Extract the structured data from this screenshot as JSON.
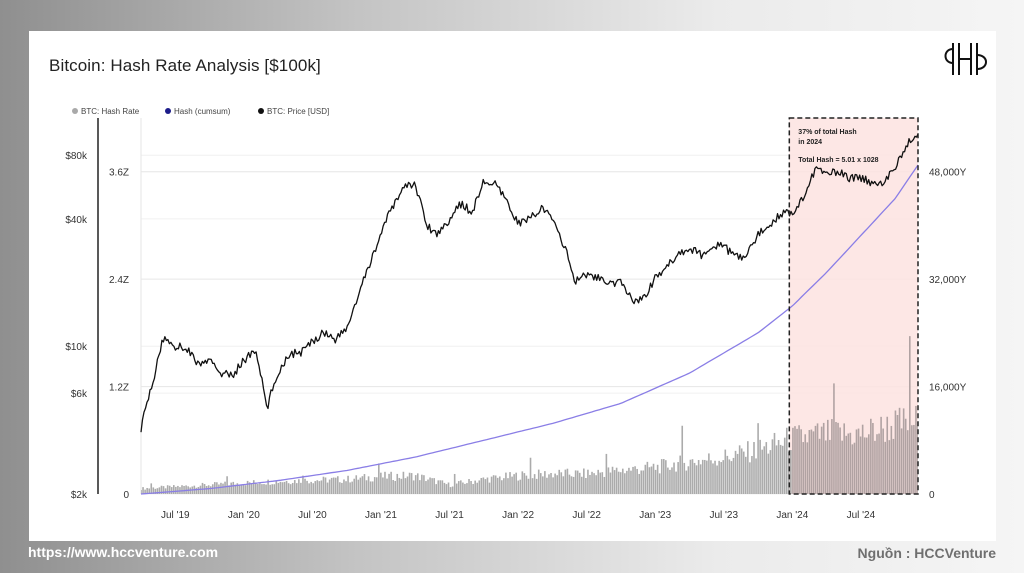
{
  "title": "Bitcoin: Hash Rate Analysis [$100k]",
  "logo_text": "HCCVENTURE",
  "footer": {
    "url": "https://www.hccventure.com",
    "source": "Nguồn : HCCVenture"
  },
  "colors": {
    "hash_rate_bars": "#a9a9a9",
    "hash_cumsum_line": "#8a7ee6",
    "price_line": "#111111",
    "highlight_fill": "#fde3e1",
    "highlight_border": "#222222"
  },
  "chart_data": {
    "type": "line",
    "title": "Bitcoin: Hash Rate Analysis [$100k]",
    "legend": [
      {
        "name": "BTC: Hash Rate",
        "color": "#a9a9a9"
      },
      {
        "name": "Hash (cumsum)",
        "color": "#1c1c8a"
      },
      {
        "name": "BTC: Price [USD]",
        "color": "#111111"
      }
    ],
    "legend_position": "top-left",
    "grid": true,
    "x_ticks": [
      "Jul '19",
      "Jan '20",
      "Jul '20",
      "Jan '21",
      "Jul '21",
      "Jan '22",
      "Jul '22",
      "Jan '23",
      "Jul '23",
      "Jan '24",
      "Jul '24"
    ],
    "x_range": [
      "2019-04",
      "2024-12"
    ],
    "price_axis": {
      "label": "",
      "scale": "log",
      "ticks": [
        "$2k",
        "$6k",
        "$10k",
        "$40k",
        "$80k"
      ],
      "values": [
        2000,
        6000,
        10000,
        40000,
        80000
      ],
      "range": [
        2000,
        120000
      ]
    },
    "hash_rate_axis": {
      "ticks": [
        "0",
        "1.2Z",
        "2.4Z",
        "3.6Z"
      ],
      "values": [
        0,
        1.2,
        2.4,
        3.6
      ],
      "range": [
        0,
        4.2
      ]
    },
    "cumsum_axis": {
      "ticks": [
        "0",
        "16,000Y",
        "32,000Y",
        "48,000Y"
      ],
      "values": [
        0,
        16000,
        32000,
        48000
      ],
      "range": [
        0,
        56000
      ]
    },
    "series": [
      {
        "name": "BTC: Price [USD]",
        "axis": "price",
        "x": [
          "2019-04",
          "2019-05",
          "2019-06",
          "2019-07",
          "2019-08",
          "2019-09",
          "2019-10",
          "2019-11",
          "2019-12",
          "2020-01",
          "2020-02",
          "2020-03",
          "2020-04",
          "2020-05",
          "2020-06",
          "2020-07",
          "2020-08",
          "2020-09",
          "2020-10",
          "2020-11",
          "2020-12",
          "2021-01",
          "2021-02",
          "2021-03",
          "2021-04",
          "2021-05",
          "2021-06",
          "2021-07",
          "2021-08",
          "2021-09",
          "2021-10",
          "2021-11",
          "2021-12",
          "2022-01",
          "2022-02",
          "2022-03",
          "2022-04",
          "2022-05",
          "2022-06",
          "2022-07",
          "2022-08",
          "2022-09",
          "2022-10",
          "2022-11",
          "2022-12",
          "2023-01",
          "2023-02",
          "2023-03",
          "2023-04",
          "2023-05",
          "2023-06",
          "2023-07",
          "2023-08",
          "2023-09",
          "2023-10",
          "2023-11",
          "2023-12",
          "2024-01",
          "2024-02",
          "2024-03",
          "2024-04",
          "2024-05",
          "2024-06",
          "2024-07",
          "2024-08",
          "2024-09",
          "2024-10",
          "2024-11",
          "2024-12"
        ],
        "values": [
          4100,
          6500,
          11000,
          10000,
          9800,
          8200,
          8500,
          7500,
          7200,
          8600,
          9500,
          5000,
          7500,
          9200,
          9300,
          10500,
          11700,
          10800,
          12000,
          17000,
          24000,
          34000,
          45000,
          57000,
          58000,
          37000,
          34000,
          40000,
          47000,
          43000,
          60000,
          58000,
          48000,
          38000,
          40000,
          45000,
          40000,
          30000,
          20000,
          22000,
          21000,
          19500,
          20000,
          16500,
          16800,
          21000,
          23500,
          27500,
          29000,
          27000,
          30000,
          29500,
          26500,
          26500,
          34000,
          37500,
          42500,
          43000,
          51000,
          68000,
          65000,
          67000,
          62000,
          63000,
          59000,
          60000,
          68000,
          90000,
          100000
        ]
      },
      {
        "name": "Hash (cumsum)",
        "axis": "cumsum",
        "x": [
          "2019-04",
          "2019-10",
          "2020-04",
          "2020-10",
          "2021-04",
          "2021-10",
          "2022-04",
          "2022-10",
          "2023-04",
          "2023-10",
          "2024-01",
          "2024-04",
          "2024-07",
          "2024-10",
          "2024-12"
        ],
        "values": [
          0,
          800,
          2000,
          3500,
          5500,
          8000,
          10500,
          13500,
          18000,
          24000,
          28000,
          33000,
          38500,
          44000,
          49000
        ]
      },
      {
        "name": "BTC: Hash Rate",
        "axis": "hash_rate",
        "x": [
          "2019-04",
          "2019-07",
          "2019-10",
          "2020-01",
          "2020-04",
          "2020-07",
          "2020-10",
          "2021-01",
          "2021-04",
          "2021-07",
          "2021-10",
          "2022-01",
          "2022-04",
          "2022-07",
          "2022-10",
          "2023-01",
          "2023-04",
          "2023-07",
          "2023-10",
          "2024-01",
          "2024-04",
          "2024-07",
          "2024-10",
          "2024-12"
        ],
        "values": [
          0.06,
          0.08,
          0.1,
          0.12,
          0.14,
          0.15,
          0.16,
          0.19,
          0.2,
          0.1,
          0.16,
          0.2,
          0.22,
          0.22,
          0.26,
          0.29,
          0.35,
          0.4,
          0.48,
          0.6,
          0.65,
          0.65,
          0.75,
          0.8
        ]
      }
    ],
    "highlight": {
      "x_start": "2024-01",
      "x_end": "2024-12",
      "annotation_lines": [
        "37% of total Hash",
        "in 2024",
        "Total Hash =  5.01 x 1028"
      ]
    }
  }
}
